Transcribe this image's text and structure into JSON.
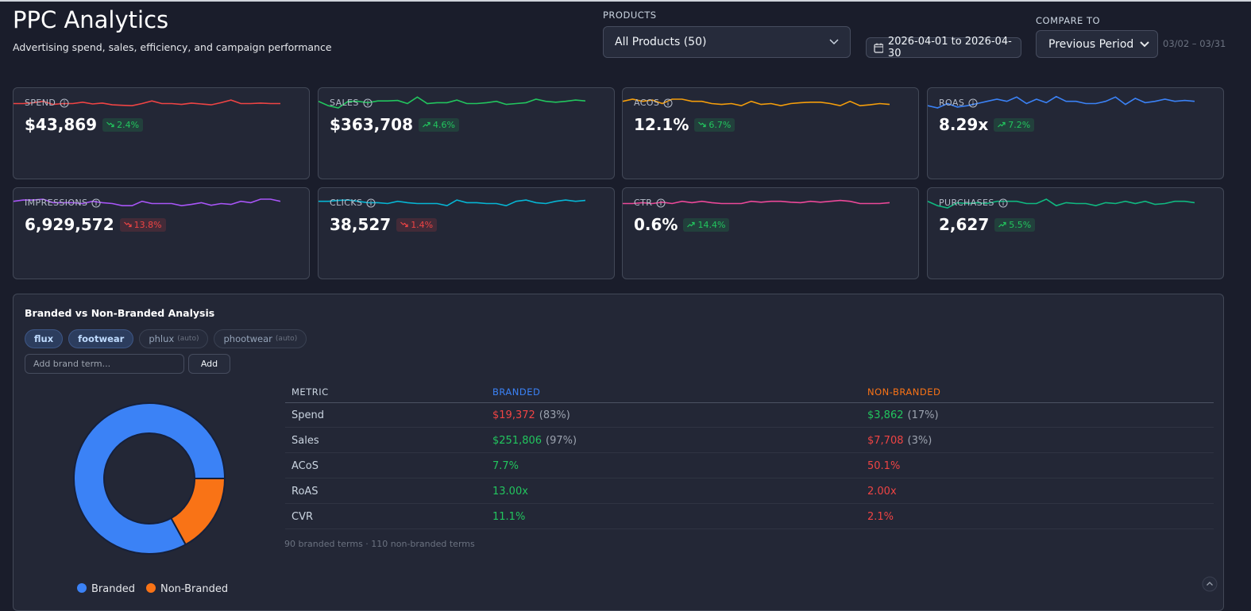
{
  "header": {
    "title": "PPC Analytics",
    "subtitle": "Advertising spend, sales, efficiency, and campaign performance"
  },
  "filters": {
    "products_label": "PRODUCTS",
    "products_value": "All Products (50)",
    "date_range": "2026-04-01 to 2026-04-30",
    "compare_label": "COMPARE TO",
    "compare_value": "Previous Period",
    "compare_range": "03/02 – 03/31"
  },
  "kpis": [
    {
      "label": "SPEND",
      "value": "$43,869",
      "delta": "2.4%",
      "trend": "down",
      "tone": "good",
      "color": "#ef4444",
      "sparkline": [
        50,
        50,
        52,
        55,
        48,
        50,
        50,
        53,
        49,
        51,
        47,
        46,
        45,
        50,
        56,
        50,
        50,
        48,
        51,
        49,
        47,
        52,
        58,
        50,
        50,
        51,
        50,
        50
      ]
    },
    {
      "label": "SALES",
      "value": "$363,708",
      "delta": "4.6%",
      "trend": "up",
      "tone": "good",
      "color": "#22c55e",
      "sparkline": [
        55,
        45,
        40,
        55,
        55,
        52,
        56,
        56,
        57,
        50,
        65,
        50,
        52,
        52,
        58,
        50,
        50,
        52,
        55,
        48,
        50,
        52,
        60,
        55,
        53,
        55,
        58,
        56
      ]
    },
    {
      "label": "ACOS",
      "value": "12.1%",
      "delta": "6.7%",
      "trend": "down",
      "tone": "good",
      "color": "#f59e0b",
      "sparkline": [
        55,
        60,
        55,
        58,
        50,
        60,
        60,
        55,
        55,
        50,
        48,
        50,
        45,
        55,
        48,
        50,
        45,
        50,
        52,
        53,
        53,
        50,
        45,
        55,
        45,
        47,
        50,
        48
      ]
    },
    {
      "label": "ROAS",
      "value": "8.29x",
      "delta": "7.2%",
      "trend": "up",
      "tone": "good",
      "color": "#3b82f6",
      "sparkline": [
        45,
        40,
        50,
        42,
        45,
        50,
        55,
        60,
        55,
        65,
        50,
        60,
        52,
        66,
        55,
        55,
        50,
        50,
        55,
        65,
        48,
        62,
        52,
        55,
        60,
        55,
        57,
        55
      ]
    },
    {
      "label": "IMPRESSIONS",
      "value": "6,929,572",
      "delta": "13.8%",
      "trend": "down",
      "tone": "bad",
      "color": "#a855f7",
      "sparkline": [
        55,
        58,
        58,
        60,
        52,
        52,
        52,
        50,
        55,
        52,
        50,
        45,
        45,
        55,
        50,
        50,
        50,
        45,
        48,
        52,
        46,
        50,
        48,
        55,
        52,
        60,
        60,
        55
      ]
    },
    {
      "label": "CLICKS",
      "value": "38,527",
      "delta": "1.4%",
      "trend": "down",
      "tone": "bad",
      "color": "#06b6d4",
      "sparkline": [
        55,
        55,
        57,
        58,
        55,
        52,
        52,
        50,
        55,
        52,
        50,
        50,
        50,
        45,
        58,
        52,
        52,
        50,
        50,
        45,
        55,
        58,
        52,
        50,
        55,
        58,
        55,
        57
      ]
    },
    {
      "label": "CTR",
      "value": "0.6%",
      "delta": "14.4%",
      "trend": "up",
      "tone": "good",
      "color": "#ec4899",
      "sparkline": [
        50,
        50,
        52,
        50,
        53,
        50,
        55,
        52,
        55,
        52,
        50,
        50,
        50,
        55,
        53,
        55,
        55,
        53,
        52,
        55,
        53,
        55,
        57,
        55,
        50,
        50,
        50,
        52
      ]
    },
    {
      "label": "PURCHASES",
      "value": "2,627",
      "delta": "5.5%",
      "trend": "up",
      "tone": "good",
      "color": "#10b981",
      "sparkline": [
        55,
        45,
        40,
        52,
        50,
        52,
        50,
        55,
        55,
        55,
        50,
        50,
        60,
        45,
        52,
        50,
        50,
        45,
        52,
        50,
        55,
        50,
        55,
        48,
        50,
        55,
        55,
        52
      ]
    }
  ],
  "branded": {
    "title": "Branded vs Non-Branded Analysis",
    "terms": [
      {
        "text": "flux",
        "active": true
      },
      {
        "text": "footwear",
        "active": true
      },
      {
        "text": "phlux",
        "tag": "(auto)",
        "active": false
      },
      {
        "text": "phootwear",
        "tag": "(auto)",
        "active": false
      }
    ],
    "input_placeholder": "Add brand term...",
    "add_button": "Add",
    "columns": [
      {
        "text": "METRIC",
        "color": "#cbd5e1"
      },
      {
        "text": "BRANDED",
        "color": "#3b82f6"
      },
      {
        "text": "NON-BRANDED",
        "color": "#f97316"
      }
    ],
    "rows": [
      {
        "metric": "Spend",
        "branded": {
          "value": "$19,372",
          "share": "(83%)",
          "tone": "bad"
        },
        "non_branded": {
          "value": "$3,862",
          "share": "(17%)",
          "tone": "good"
        }
      },
      {
        "metric": "Sales",
        "branded": {
          "value": "$251,806",
          "share": "(97%)",
          "tone": "good"
        },
        "non_branded": {
          "value": "$7,708",
          "share": "(3%)",
          "tone": "bad"
        }
      },
      {
        "metric": "ACoS",
        "branded": {
          "value": "7.7%",
          "tone": "good"
        },
        "non_branded": {
          "value": "50.1%",
          "tone": "bad"
        }
      },
      {
        "metric": "RoAS",
        "branded": {
          "value": "13.00x",
          "tone": "good"
        },
        "non_branded": {
          "value": "2.00x",
          "tone": "bad"
        }
      },
      {
        "metric": "CVR",
        "branded": {
          "value": "11.1%",
          "tone": "good"
        },
        "non_branded": {
          "value": "2.1%",
          "tone": "bad"
        }
      }
    ],
    "footnote": "90 branded terms · 110 non-branded terms",
    "chart_data": {
      "type": "pie",
      "donut": true,
      "categories": [
        "Branded",
        "Non-Branded"
      ],
      "values": [
        83,
        17
      ],
      "colors": [
        "#3b82f6",
        "#f97316"
      ]
    }
  }
}
